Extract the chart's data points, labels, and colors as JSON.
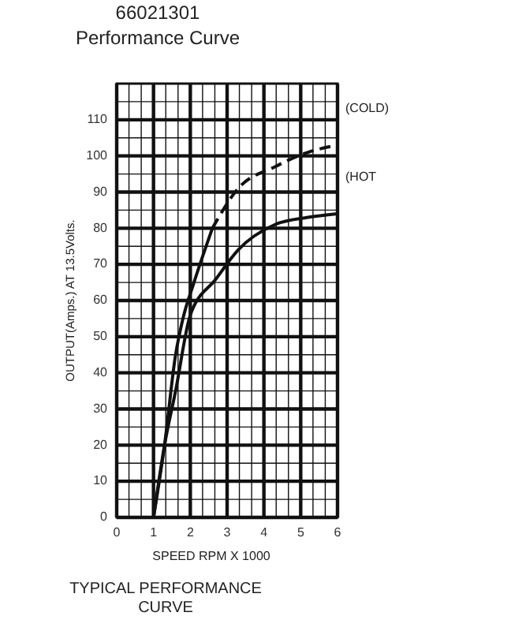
{
  "chart_data": {
    "type": "line",
    "title": "66021301",
    "subtitle": "Performance Curve",
    "xlabel": "SPEED RPM X 1000",
    "ylabel": "OUTPUT(Amps.) AT 13.5Volts.",
    "annotations": [
      "TYPICAL PERFORMANCE CURVE"
    ],
    "xlim": [
      0,
      6
    ],
    "xticks": [
      0,
      1,
      2,
      3,
      4,
      5,
      6
    ],
    "ylim": [
      0,
      120
    ],
    "yticks": [
      0,
      10,
      20,
      30,
      40,
      50,
      60,
      70,
      80,
      90,
      100,
      110
    ],
    "grid": true,
    "marker": "none",
    "series": [
      {
        "color": "#111111",
        "line_style": "solid",
        "x": [
          1.0,
          1.3,
          1.6,
          1.8,
          2.1,
          2.6
        ],
        "values": [
          0,
          20,
          45,
          55,
          65,
          80
        ]
      },
      {
        "name": "(COLD)",
        "color": "#111111",
        "line_style": "dashed",
        "x": [
          2.6,
          3.3,
          4.3,
          5.2,
          6
        ],
        "values": [
          80,
          91,
          97,
          101,
          103
        ]
      },
      {
        "name": "(HOT",
        "color": "#111111",
        "line_style": "solid",
        "x": [
          1.0,
          1.3,
          1.6,
          2.0,
          2.7,
          3.3,
          4.3,
          5.2,
          6
        ],
        "values": [
          0,
          20,
          35,
          56,
          66,
          74,
          81,
          83,
          84
        ]
      }
    ]
  }
}
